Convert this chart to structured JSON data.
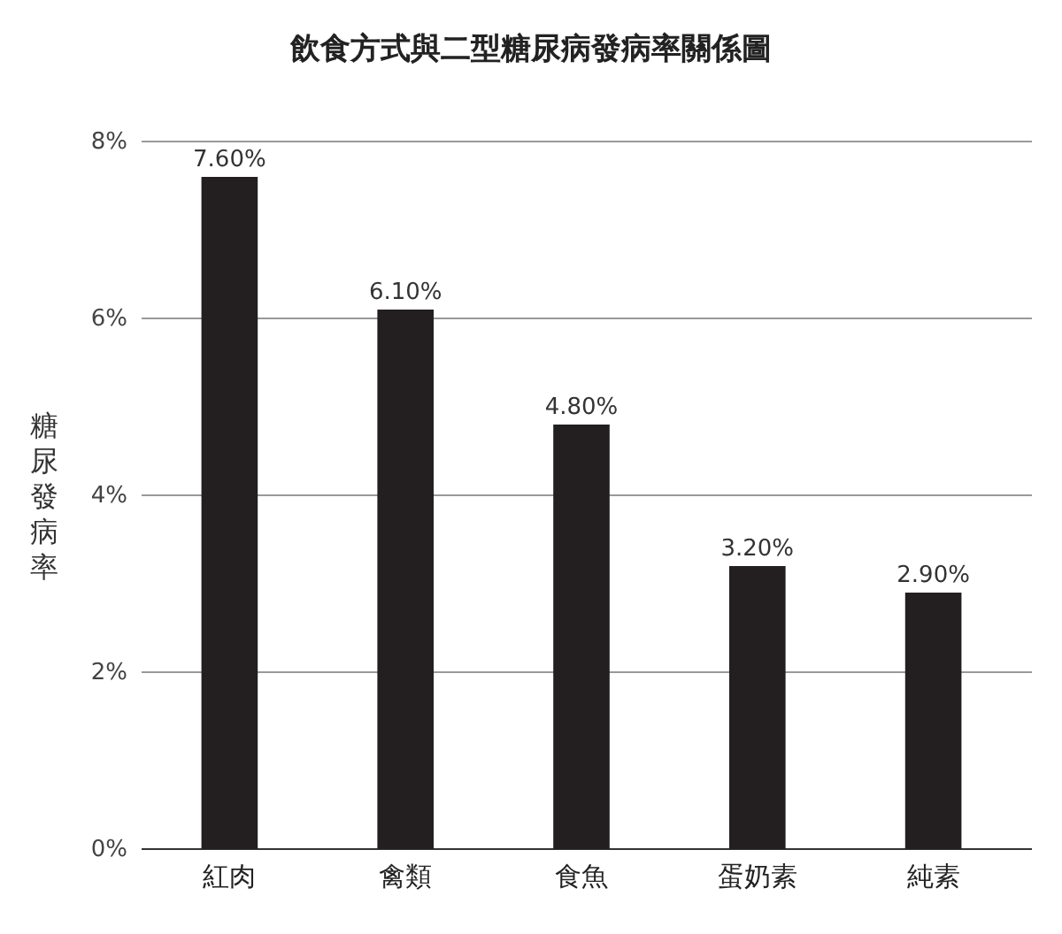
{
  "chart_data": {
    "type": "bar",
    "title": "飲食方式與二型糖尿病發病率關係圖",
    "ylabel": "糖尿發病率",
    "categories": [
      "紅肉",
      "禽類",
      "食魚",
      "蛋奶素",
      "純素"
    ],
    "values": [
      7.6,
      6.1,
      4.8,
      3.2,
      2.9
    ],
    "value_labels": [
      "7.60%",
      "6.10%",
      "4.80%",
      "3.20%",
      "2.90%"
    ],
    "color": "#231f20",
    "ylim": [
      0,
      8
    ],
    "yticks": [
      {
        "value": 0,
        "label": "0%"
      },
      {
        "value": 2,
        "label": "2%"
      },
      {
        "value": 4,
        "label": "4%"
      },
      {
        "value": 6,
        "label": "6%"
      },
      {
        "value": 8,
        "label": "8%"
      }
    ],
    "grid": "y"
  }
}
